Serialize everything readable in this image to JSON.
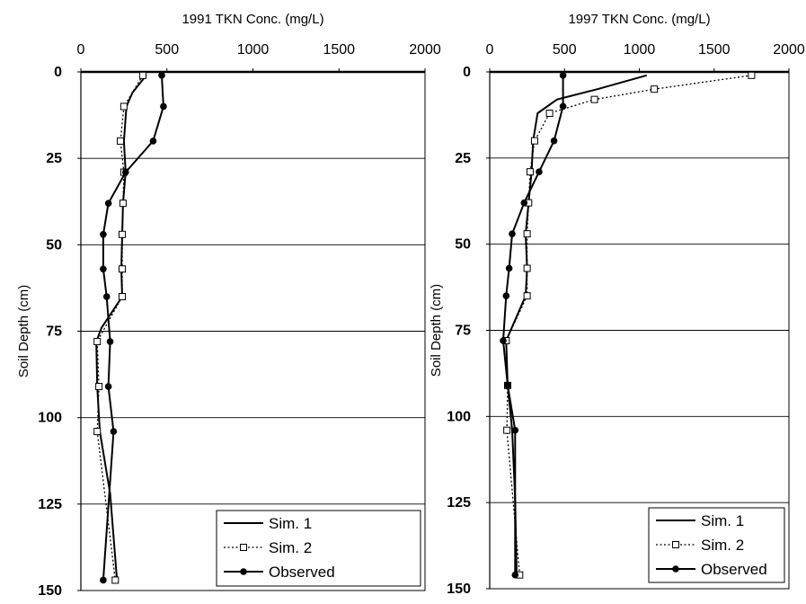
{
  "chart_data": [
    {
      "type": "line",
      "title": "1991 TKN Conc. (mg/L)",
      "xlabel": "1991 TKN Conc. (mg/L)",
      "ylabel": "Soil Depth (cm)",
      "xlim": [
        0,
        2000
      ],
      "ylim": [
        0,
        150
      ],
      "y_inverted": true,
      "x_axis_position": "top",
      "x_ticks": [
        "0",
        "500",
        "1000",
        "1500",
        "2000"
      ],
      "y_ticks": [
        "0",
        "25",
        "50",
        "75",
        "100",
        "125",
        "150"
      ],
      "grid": "horizontal",
      "legend_position": "bottom-right",
      "series": [
        {
          "name": "Sim. 1",
          "style": "solid",
          "marker": "none",
          "points": [
            [
              380,
              1
            ],
            [
              300,
              6
            ],
            [
              265,
              10
            ],
            [
              250,
              20
            ],
            [
              260,
              29
            ],
            [
              245,
              38
            ],
            [
              240,
              47
            ],
            [
              235,
              57
            ],
            [
              240,
              65
            ],
            [
              120,
              74
            ],
            [
              90,
              78
            ],
            [
              95,
              91
            ],
            [
              110,
              104
            ],
            [
              170,
              122
            ],
            [
              210,
              147
            ]
          ]
        },
        {
          "name": "Sim. 2",
          "style": "dotted",
          "marker": "open-square",
          "points": [
            [
              360,
              1
            ],
            [
              250,
              10
            ],
            [
              230,
              20
            ],
            [
              250,
              29
            ],
            [
              245,
              38
            ],
            [
              240,
              47
            ],
            [
              240,
              57
            ],
            [
              240,
              65
            ],
            [
              95,
              78
            ],
            [
              105,
              91
            ],
            [
              95,
              104
            ],
            [
              200,
              147
            ]
          ]
        },
        {
          "name": "Observed",
          "style": "solid",
          "marker": "filled-circle",
          "points": [
            [
              470,
              1
            ],
            [
              480,
              10
            ],
            [
              420,
              20
            ],
            [
              260,
              29
            ],
            [
              160,
              38
            ],
            [
              130,
              47
            ],
            [
              130,
              57
            ],
            [
              150,
              65
            ],
            [
              170,
              78
            ],
            [
              160,
              91
            ],
            [
              190,
              104
            ],
            [
              130,
              147
            ]
          ]
        }
      ]
    },
    {
      "type": "line",
      "title": "1997 TKN Conc. (mg/L)",
      "xlabel": "1997 TKN Conc. (mg/L)",
      "ylabel": "Soil Depth (cm)",
      "xlim": [
        0,
        2000
      ],
      "ylim": [
        0,
        150
      ],
      "y_inverted": true,
      "x_axis_position": "top",
      "x_ticks": [
        "0",
        "500",
        "1000",
        "1500",
        "2000"
      ],
      "y_ticks": [
        "0",
        "25",
        "50",
        "75",
        "100",
        "125",
        "150"
      ],
      "grid": "horizontal",
      "legend_position": "bottom-right",
      "series": [
        {
          "name": "Sim. 1",
          "style": "solid",
          "marker": "none",
          "points": [
            [
              1050,
              1
            ],
            [
              720,
              5
            ],
            [
              450,
              8
            ],
            [
              320,
              12
            ],
            [
              290,
              20
            ],
            [
              280,
              29
            ],
            [
              260,
              38
            ],
            [
              240,
              47
            ],
            [
              250,
              57
            ],
            [
              240,
              65
            ],
            [
              110,
              78
            ],
            [
              120,
              91
            ],
            [
              150,
              104
            ],
            [
              170,
              124
            ],
            [
              180,
              146
            ]
          ]
        },
        {
          "name": "Sim. 2",
          "style": "dotted",
          "marker": "open-square",
          "points": [
            [
              1750,
              1
            ],
            [
              1100,
              5
            ],
            [
              700,
              8
            ],
            [
              400,
              12
            ],
            [
              300,
              20
            ],
            [
              270,
              29
            ],
            [
              260,
              38
            ],
            [
              250,
              47
            ],
            [
              250,
              57
            ],
            [
              250,
              65
            ],
            [
              110,
              78
            ],
            [
              120,
              91
            ],
            [
              115,
              104
            ],
            [
              200,
              146
            ]
          ]
        },
        {
          "name": "Observed",
          "style": "solid",
          "marker": "filled-circle",
          "points": [
            [
              490,
              1
            ],
            [
              490,
              10
            ],
            [
              430,
              20
            ],
            [
              330,
              29
            ],
            [
              230,
              38
            ],
            [
              150,
              47
            ],
            [
              130,
              57
            ],
            [
              110,
              65
            ],
            [
              90,
              78
            ],
            [
              120,
              91
            ],
            [
              170,
              104
            ],
            [
              170,
              146
            ]
          ]
        }
      ]
    }
  ]
}
